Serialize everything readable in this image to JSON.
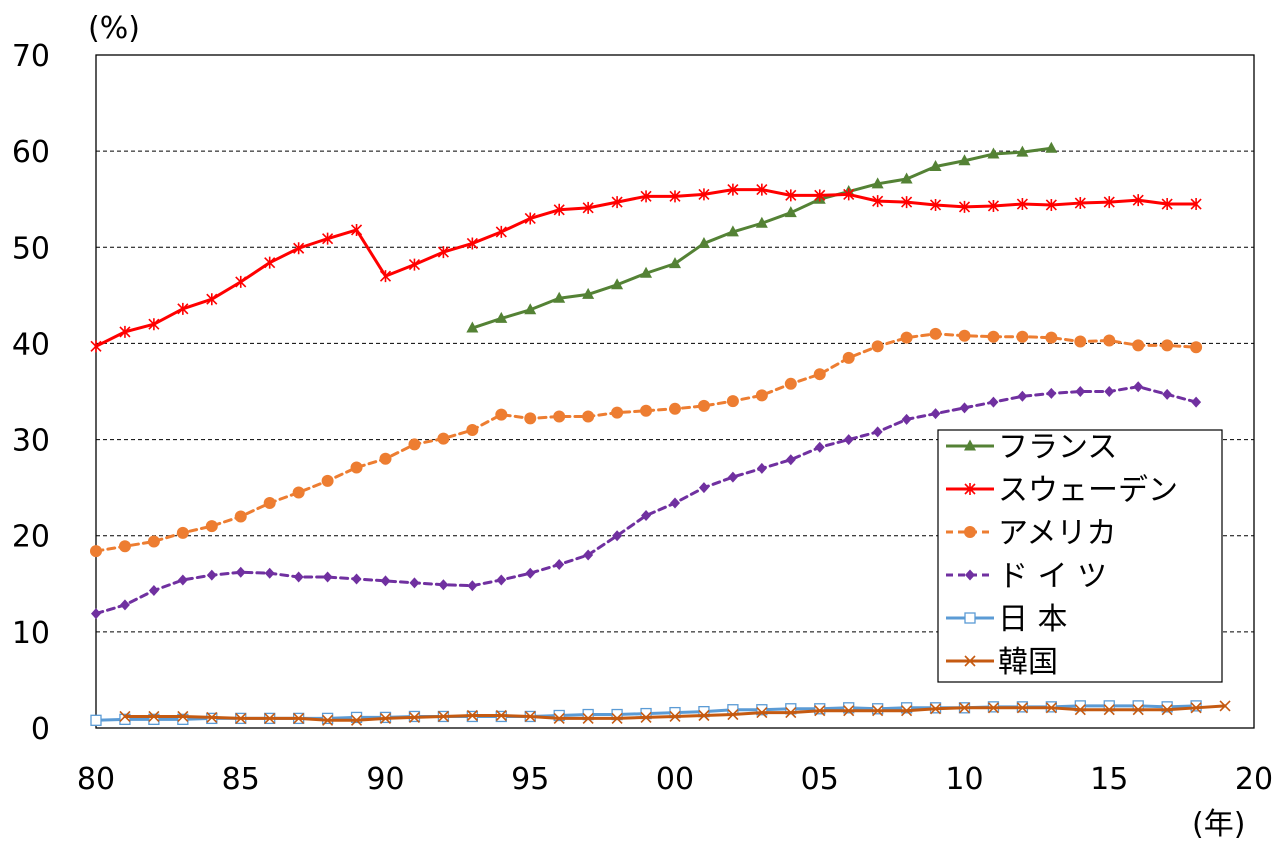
{
  "chart_data": {
    "type": "line",
    "title": "",
    "ylabel": "(%)",
    "xlabel": "(年)",
    "xlim": [
      80,
      120
    ],
    "ylim": [
      0,
      70
    ],
    "x_ticks": [
      80,
      85,
      90,
      95,
      100,
      105,
      110,
      115,
      120
    ],
    "x_tick_labels": [
      "80",
      "85",
      "90",
      "95",
      "00",
      "05",
      "10",
      "15",
      "20"
    ],
    "y_ticks": [
      0,
      10,
      20,
      30,
      40,
      50,
      60,
      70
    ],
    "y_tick_labels": [
      "0",
      "10",
      "20",
      "30",
      "40",
      "50",
      "60",
      "70"
    ],
    "grid": "horizontal-dashed",
    "legend_position": "right",
    "series": [
      {
        "name": "フランス",
        "color": "#548235",
        "marker": "triangle",
        "line_style": "solid",
        "x": [
          93,
          94,
          95,
          96,
          97,
          98,
          99,
          100,
          101,
          102,
          103,
          104,
          105,
          106,
          107,
          108,
          109,
          110,
          111,
          112,
          113
        ],
        "y": [
          41.6,
          42.6,
          43.5,
          44.7,
          45.1,
          46.1,
          47.3,
          48.3,
          50.4,
          51.6,
          52.5,
          53.6,
          55.0,
          55.8,
          56.6,
          57.1,
          58.4,
          59.0,
          59.7,
          59.9,
          60.3
        ]
      },
      {
        "name": "スウェーデン",
        "color": "#ff0000",
        "marker": "asterisk",
        "line_style": "solid",
        "x": [
          80,
          81,
          82,
          83,
          84,
          85,
          86,
          87,
          88,
          89,
          90,
          91,
          92,
          93,
          94,
          95,
          96,
          97,
          98,
          99,
          100,
          101,
          102,
          103,
          104,
          105,
          106,
          107,
          108,
          109,
          110,
          111,
          112,
          113,
          114,
          115,
          116,
          117,
          118
        ],
        "y": [
          39.7,
          41.2,
          42.0,
          43.6,
          44.6,
          46.4,
          48.4,
          49.9,
          50.9,
          51.8,
          47.0,
          48.2,
          49.5,
          50.4,
          51.6,
          53.0,
          53.9,
          54.1,
          54.7,
          55.3,
          55.3,
          55.5,
          56.0,
          56.0,
          55.4,
          55.4,
          55.5,
          54.8,
          54.7,
          54.4,
          54.2,
          54.3,
          54.5,
          54.4,
          54.6,
          54.7,
          54.9,
          54.5,
          54.5
        ]
      },
      {
        "name": "アメリカ",
        "color": "#ed7d31",
        "marker": "circle",
        "line_style": "dashed",
        "x": [
          80,
          81,
          82,
          83,
          84,
          85,
          86,
          87,
          88,
          89,
          90,
          91,
          92,
          93,
          94,
          95,
          96,
          97,
          98,
          99,
          100,
          101,
          102,
          103,
          104,
          105,
          106,
          107,
          108,
          109,
          110,
          111,
          112,
          113,
          114,
          115,
          116,
          117,
          118
        ],
        "y": [
          18.4,
          18.9,
          19.4,
          20.3,
          21.0,
          22.0,
          23.4,
          24.5,
          25.7,
          27.1,
          28.0,
          29.5,
          30.1,
          31.0,
          32.6,
          32.2,
          32.4,
          32.4,
          32.8,
          33.0,
          33.2,
          33.5,
          34.0,
          34.6,
          35.8,
          36.8,
          38.5,
          39.7,
          40.6,
          41.0,
          40.8,
          40.7,
          40.7,
          40.6,
          40.2,
          40.3,
          39.8,
          39.8,
          39.6
        ]
      },
      {
        "name": "ド イ ツ",
        "color": "#7030a0",
        "marker": "diamond",
        "line_style": "dashed",
        "x": [
          80,
          81,
          82,
          83,
          84,
          85,
          86,
          87,
          88,
          89,
          90,
          91,
          92,
          93,
          94,
          95,
          96,
          97,
          98,
          99,
          100,
          101,
          102,
          103,
          104,
          105,
          106,
          107,
          108,
          109,
          110,
          111,
          112,
          113,
          114,
          115,
          116,
          117,
          118
        ],
        "y": [
          11.9,
          12.8,
          14.3,
          15.4,
          15.9,
          16.2,
          16.1,
          15.7,
          15.7,
          15.5,
          15.3,
          15.1,
          14.9,
          14.8,
          15.4,
          16.1,
          17.0,
          18.0,
          20.0,
          22.1,
          23.4,
          25.0,
          26.1,
          27.0,
          27.9,
          29.2,
          30.0,
          30.8,
          32.1,
          32.7,
          33.3,
          33.9,
          34.5,
          34.8,
          35.0,
          35.0,
          35.5,
          34.7,
          33.9
        ]
      },
      {
        "name": "日 本",
        "color": "#5b9bd5",
        "marker": "square",
        "line_style": "solid",
        "x": [
          80,
          81,
          82,
          83,
          84,
          85,
          86,
          87,
          88,
          89,
          90,
          91,
          92,
          93,
          94,
          95,
          96,
          97,
          98,
          99,
          100,
          101,
          102,
          103,
          104,
          105,
          106,
          107,
          108,
          109,
          110,
          111,
          112,
          113,
          114,
          115,
          116,
          117,
          118
        ],
        "y": [
          0.8,
          0.9,
          0.9,
          0.9,
          1.0,
          1.0,
          1.0,
          1.0,
          1.0,
          1.1,
          1.1,
          1.2,
          1.2,
          1.2,
          1.2,
          1.2,
          1.3,
          1.4,
          1.4,
          1.5,
          1.6,
          1.7,
          1.9,
          1.9,
          2.0,
          2.0,
          2.1,
          2.0,
          2.1,
          2.1,
          2.1,
          2.2,
          2.2,
          2.2,
          2.3,
          2.3,
          2.3,
          2.2,
          2.3
        ]
      },
      {
        "name": "韓国",
        "color": "#c55a11",
        "marker": "x",
        "line_style": "solid",
        "x": [
          81,
          82,
          83,
          84,
          85,
          86,
          87,
          88,
          89,
          90,
          91,
          92,
          93,
          94,
          95,
          96,
          97,
          98,
          99,
          100,
          101,
          102,
          103,
          104,
          105,
          106,
          107,
          108,
          109,
          110,
          111,
          112,
          113,
          114,
          115,
          116,
          117,
          118,
          119
        ],
        "y": [
          1.2,
          1.2,
          1.2,
          1.1,
          1.0,
          1.0,
          1.0,
          0.8,
          0.8,
          1.0,
          1.1,
          1.2,
          1.3,
          1.3,
          1.2,
          1.0,
          1.0,
          1.0,
          1.1,
          1.2,
          1.3,
          1.4,
          1.6,
          1.6,
          1.8,
          1.8,
          1.8,
          1.8,
          2.0,
          2.1,
          2.1,
          2.1,
          2.1,
          1.9,
          1.9,
          1.9,
          1.9,
          2.1,
          2.3
        ]
      }
    ]
  }
}
